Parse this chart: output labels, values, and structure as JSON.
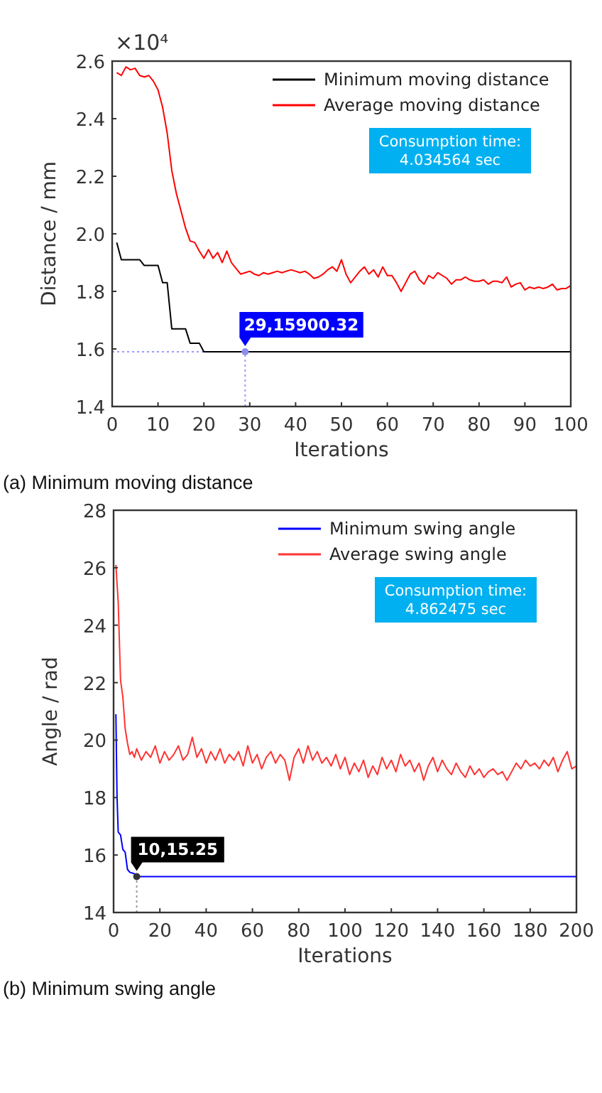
{
  "chart_data": [
    {
      "type": "line",
      "title": "(a) Minimum moving distance",
      "xlabel": "Iterations",
      "ylabel": "Distance / mm",
      "xlim": [
        0,
        100
      ],
      "xticks": [
        0,
        10,
        20,
        30,
        40,
        50,
        60,
        70,
        80,
        90,
        100
      ],
      "ylim": [
        1.4,
        2.6
      ],
      "yticks": [
        1.4,
        1.6,
        1.8,
        {
          "value": 2,
          "label": "2.0"
        },
        2.2,
        2.4,
        2.6
      ],
      "legend": "top right",
      "grid": false,
      "ref_lines": [
        {
          "axis": "x",
          "value": 29,
          "color": "#9999ff",
          "line_style": "dotted"
        },
        {
          "axis": "y",
          "value": 1.59,
          "color": "#9999ff",
          "line_style": "dotted"
        }
      ],
      "annotations": [
        "×10⁴",
        {
          "text": "29,15900.32",
          "x": 29,
          "y": 1.590032
        },
        "Consumption time:\n4.034564 sec"
      ],
      "series": [
        {
          "name": "Minimum moving distance",
          "color": "#000000",
          "x": [
            1,
            2,
            6,
            7,
            10,
            11,
            12,
            13,
            16,
            17,
            19,
            20,
            100
          ],
          "values": [
            1.97,
            1.91,
            1.91,
            1.89,
            1.89,
            1.83,
            1.83,
            1.67,
            1.67,
            1.62,
            1.62,
            1.59,
            1.59
          ]
        },
        {
          "name": "Average moving distance",
          "color": "#ff0000",
          "x": [
            1,
            2,
            3,
            4,
            5,
            6,
            7,
            8,
            9,
            10,
            11,
            12,
            13,
            14,
            15,
            16,
            17,
            18,
            19,
            20,
            21,
            22,
            23,
            24,
            25,
            26,
            27,
            28,
            29,
            30,
            31,
            32,
            33,
            34,
            35,
            36,
            37,
            38,
            39,
            40,
            41,
            42,
            43,
            44,
            45,
            46,
            47,
            48,
            49,
            50,
            51,
            52,
            53,
            54,
            55,
            56,
            57,
            58,
            59,
            60,
            61,
            62,
            63,
            64,
            65,
            66,
            67,
            68,
            69,
            70,
            71,
            72,
            73,
            74,
            75,
            76,
            77,
            78,
            79,
            80,
            81,
            82,
            83,
            84,
            85,
            86,
            87,
            88,
            89,
            90,
            91,
            92,
            93,
            94,
            95,
            96,
            97,
            98,
            99,
            100
          ],
          "values": [
            2.56,
            2.55,
            2.58,
            2.57,
            2.575,
            2.55,
            2.545,
            2.55,
            2.53,
            2.5,
            2.44,
            2.35,
            2.22,
            2.14,
            2.08,
            2.02,
            1.975,
            1.97,
            1.94,
            1.915,
            1.945,
            1.915,
            1.935,
            1.9,
            1.94,
            1.9,
            1.88,
            1.86,
            1.865,
            1.87,
            1.86,
            1.855,
            1.865,
            1.86,
            1.865,
            1.87,
            1.865,
            1.87,
            1.875,
            1.87,
            1.865,
            1.87,
            1.86,
            1.845,
            1.85,
            1.86,
            1.875,
            1.885,
            1.87,
            1.91,
            1.86,
            1.83,
            1.85,
            1.87,
            1.885,
            1.86,
            1.875,
            1.85,
            1.885,
            1.855,
            1.855,
            1.83,
            1.8,
            1.83,
            1.86,
            1.87,
            1.84,
            1.825,
            1.855,
            1.845,
            1.865,
            1.855,
            1.845,
            1.825,
            1.84,
            1.84,
            1.85,
            1.84,
            1.835,
            1.835,
            1.84,
            1.825,
            1.835,
            1.835,
            1.83,
            1.85,
            1.815,
            1.825,
            1.83,
            1.805,
            1.815,
            1.81,
            1.815,
            1.81,
            1.815,
            1.825,
            1.805,
            1.81,
            1.81,
            1.82
          ]
        }
      ]
    },
    {
      "type": "line",
      "title": "(b) Minimum swing angle",
      "xlabel": "Iterations",
      "ylabel": "Angle / rad",
      "xlim": [
        0,
        200
      ],
      "xticks": [
        0,
        20,
        40,
        60,
        80,
        100,
        120,
        140,
        160,
        180,
        200
      ],
      "ylim": [
        14,
        28
      ],
      "yticks": [
        14,
        16,
        18,
        20,
        22,
        24,
        26,
        28
      ],
      "legend": "top right",
      "grid": false,
      "ref_lines": [
        {
          "axis": "x",
          "value": 10,
          "color": "#999999",
          "line_style": "dotted"
        }
      ],
      "annotations": [
        {
          "text": "10,15.25",
          "x": 10,
          "y": 15.25
        },
        "Consumption time:\n4.862475 sec"
      ],
      "series": [
        {
          "name": "Minimum swing angle",
          "color": "#0000ff",
          "x": [
            1,
            1.5,
            2,
            3,
            4,
            5,
            6,
            7,
            9,
            10,
            200
          ],
          "values": [
            20.9,
            18,
            16.8,
            16.7,
            16.2,
            16.1,
            15.5,
            15.4,
            15.35,
            15.25,
            15.25
          ]
        },
        {
          "name": "Average swing angle",
          "color": "#ff3333",
          "x": [
            1,
            2,
            3,
            4,
            5,
            6,
            7,
            8,
            9,
            10,
            12,
            14,
            16,
            18,
            20,
            22,
            24,
            26,
            28,
            30,
            32,
            34,
            36,
            38,
            40,
            42,
            44,
            46,
            48,
            50,
            52,
            54,
            56,
            58,
            60,
            62,
            64,
            66,
            68,
            70,
            72,
            74,
            76,
            78,
            80,
            82,
            84,
            86,
            88,
            90,
            92,
            94,
            96,
            98,
            100,
            102,
            104,
            106,
            108,
            110,
            112,
            114,
            116,
            118,
            120,
            122,
            124,
            126,
            128,
            130,
            132,
            134,
            136,
            138,
            140,
            142,
            144,
            146,
            148,
            150,
            152,
            154,
            156,
            158,
            160,
            162,
            164,
            166,
            168,
            170,
            172,
            174,
            176,
            178,
            180,
            182,
            184,
            186,
            188,
            190,
            192,
            194,
            196,
            198,
            200
          ],
          "values": [
            26.1,
            24.8,
            22.1,
            21.5,
            20.4,
            19.9,
            19.5,
            19.6,
            19.4,
            19.7,
            19.3,
            19.6,
            19.4,
            19.8,
            19.2,
            19.6,
            19.3,
            19.5,
            19.8,
            19.3,
            19.5,
            20.1,
            19.4,
            19.7,
            19.2,
            19.6,
            19.3,
            19.7,
            19.2,
            19.5,
            19.3,
            19.6,
            19.1,
            19.8,
            19.2,
            19.5,
            19.0,
            19.4,
            19.6,
            19.2,
            19.5,
            19.3,
            18.6,
            19.4,
            19.7,
            19.2,
            19.8,
            19.3,
            19.6,
            19.2,
            19.4,
            19.1,
            19.5,
            19.0,
            19.4,
            18.8,
            19.2,
            18.9,
            19.3,
            18.7,
            19.1,
            18.8,
            19.4,
            19.0,
            19.3,
            18.9,
            19.5,
            19.1,
            19.3,
            18.9,
            19.2,
            18.6,
            19.1,
            19.4,
            18.9,
            19.3,
            19.0,
            18.8,
            19.2,
            18.9,
            18.7,
            19.1,
            18.8,
            19.0,
            18.7,
            18.9,
            19.0,
            18.8,
            18.9,
            18.6,
            18.9,
            19.2,
            19.0,
            19.3,
            19.1,
            19.2,
            19.0,
            19.3,
            19.1,
            19.4,
            18.9,
            19.3,
            19.6,
            19.0,
            19.1
          ]
        }
      ]
    }
  ]
}
